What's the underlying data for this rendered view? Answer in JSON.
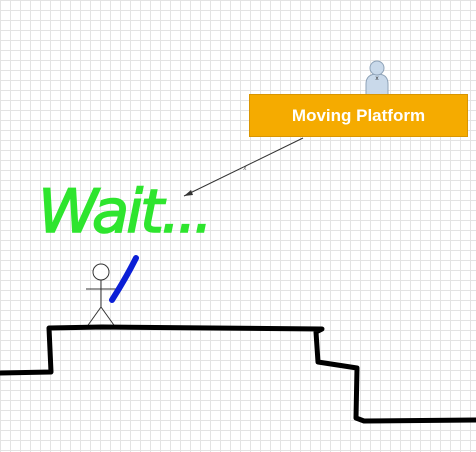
{
  "diagram": {
    "platform_label": "Moving Platform",
    "note_text": "Wait...",
    "colors": {
      "platform_fill": "#f5ab00",
      "platform_text": "#ffffff",
      "note": "#2ee52e",
      "bat": "#0b1fd6",
      "ground": "#000000",
      "grid": "#e3e3e3",
      "actor": "#c9d9ea"
    },
    "icons": [
      "user-avatar-icon",
      "stick-figure-icon",
      "arrow-connector-icon"
    ]
  }
}
